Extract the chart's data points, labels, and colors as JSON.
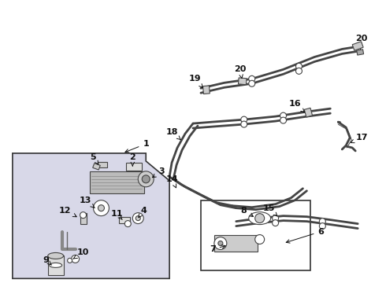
{
  "bg_color": "#ffffff",
  "line_color": "#444444",
  "box1_fill": "#d8d8e8",
  "box2_fill": "#ffffff",
  "box_stroke": "#333333",
  "label_color": "#111111",
  "fig_w": 4.9,
  "fig_h": 3.6,
  "dpi": 100
}
